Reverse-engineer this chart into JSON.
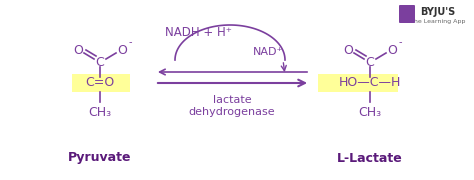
{
  "bg_color": "#ffffff",
  "purple": "#7b3f9e",
  "yellow_highlight": "#ffff99",
  "pyruvate_label": "Pyruvate",
  "llactate_label": "L-Lactate",
  "nadh_label": "NADH + H⁺",
  "nad_label": "NAD⁺",
  "enzyme_label": "lactate\ndehydrogenase",
  "byju_color": "#333333",
  "byju_box": "#7b3f9e"
}
